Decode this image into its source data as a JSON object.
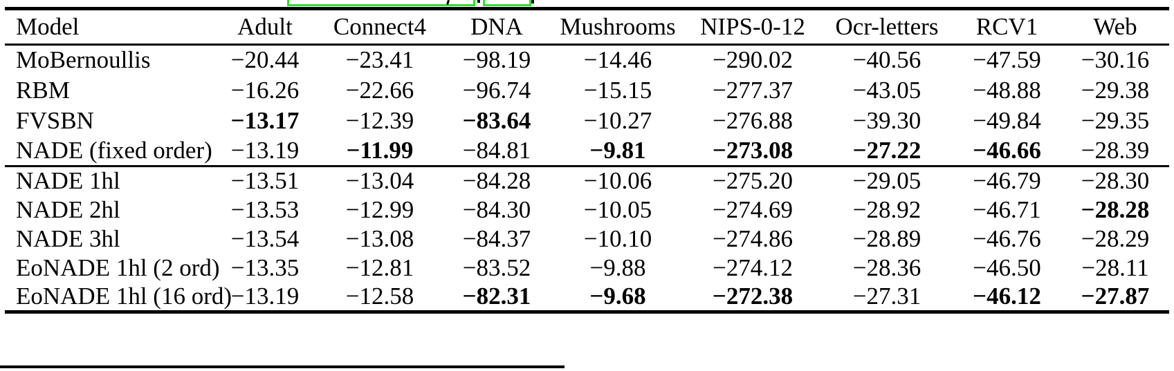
{
  "colors": {
    "background": "#ffffff",
    "text": "#000000",
    "rule": "#000000",
    "link_box_green": "#2be02b"
  },
  "top_artifacts": {
    "description_names": [
      "link-highlight-box-large",
      "caption-glyph-fragment-y",
      "caption-glyph-fragment-left",
      "link-highlight-box-small",
      "caption-glyph-fragment-right"
    ]
  },
  "table": {
    "columns": [
      "Model",
      "Adult",
      "Connect4",
      "DNA",
      "Mushrooms",
      "NIPS-0-12",
      "Ocr-letters",
      "RCV1",
      "Web"
    ],
    "group_start_index": 4,
    "rows": [
      {
        "model": "MoBernoullis",
        "values": [
          "−20.44",
          "−23.41",
          "−98.19",
          "−14.46",
          "−290.02",
          "−40.56",
          "−47.59",
          "−30.16"
        ],
        "bold": []
      },
      {
        "model": "RBM",
        "values": [
          "−16.26",
          "−22.66",
          "−96.74",
          "−15.15",
          "−277.37",
          "−43.05",
          "−48.88",
          "−29.38"
        ],
        "bold": []
      },
      {
        "model": "FVSBN",
        "values": [
          "−13.17",
          "−12.39",
          "−83.64",
          "−10.27",
          "−276.88",
          "−39.30",
          "−49.84",
          "−29.35"
        ],
        "bold": [
          0,
          2
        ]
      },
      {
        "model": "NADE (fixed order)",
        "values": [
          "−13.19",
          "−11.99",
          "−84.81",
          "−9.81",
          "−273.08",
          "−27.22",
          "−46.66",
          "−28.39"
        ],
        "bold": [
          1,
          3,
          4,
          5,
          6
        ]
      },
      {
        "model": "NADE 1hl",
        "values": [
          "−13.51",
          "−13.04",
          "−84.28",
          "−10.06",
          "−275.20",
          "−29.05",
          "−46.79",
          "−28.30"
        ],
        "bold": []
      },
      {
        "model": "NADE 2hl",
        "values": [
          "−13.53",
          "−12.99",
          "−84.30",
          "−10.05",
          "−274.69",
          "−28.92",
          "−46.71",
          "−28.28"
        ],
        "bold": [
          7
        ]
      },
      {
        "model": "NADE 3hl",
        "values": [
          "−13.54",
          "−13.08",
          "−84.37",
          "−10.10",
          "−274.86",
          "−28.89",
          "−46.76",
          "−28.29"
        ],
        "bold": []
      },
      {
        "model": "EoNADE 1hl (2 ord)",
        "values": [
          "−13.35",
          "−12.81",
          "−83.52",
          "−9.88",
          "−274.12",
          "−28.36",
          "−46.50",
          "−28.11"
        ],
        "bold": []
      },
      {
        "model": "EoNADE 1hl (16 ord)",
        "values": [
          "−13.19",
          "−12.58",
          "−82.31",
          "−9.68",
          "−272.38",
          "−27.31",
          "−46.12",
          "−27.87"
        ],
        "bold": [
          2,
          3,
          4,
          6,
          7
        ]
      }
    ]
  }
}
